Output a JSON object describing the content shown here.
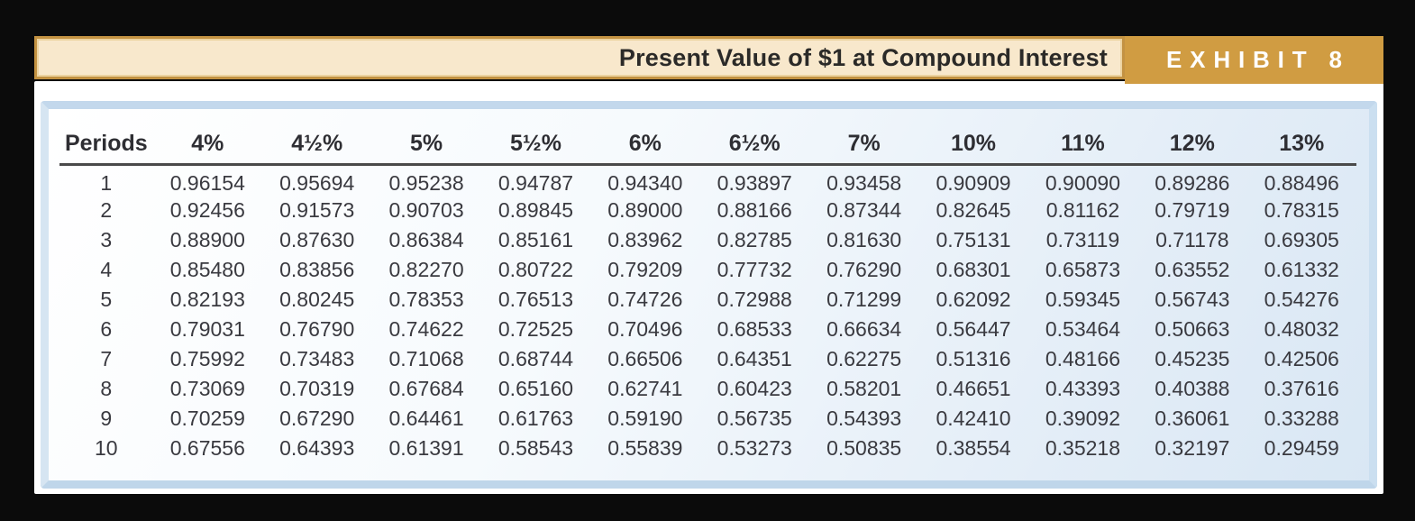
{
  "header": {
    "title": "Present Value of $1 at Compound Interest",
    "exhibit_label": "EXHIBIT 8"
  },
  "colors": {
    "page_bg": "#0b0b0b",
    "header_bar_bg": "#f8e8cc",
    "header_bar_border": "#c39242",
    "exhibit_tab_bg": "#d09c42",
    "exhibit_text": "#ffffff",
    "title_text": "#2b2a28",
    "sheet_bg": "#ffffff",
    "panel_frame": "#c6daed",
    "panel_bg_start": "#ffffff",
    "panel_bg_end": "#d9e7f4",
    "table_text": "#3a3a40",
    "header_rule": "#4a4a4a"
  },
  "table": {
    "columns": [
      "Periods",
      "4%",
      "4½%",
      "5%",
      "5½%",
      "6%",
      "6½%",
      "7%",
      "10%",
      "11%",
      "12%",
      "13%"
    ],
    "rows": [
      [
        "1",
        "0.96154",
        "0.95694",
        "0.95238",
        "0.94787",
        "0.94340",
        "0.93897",
        "0.93458",
        "0.90909",
        "0.90090",
        "0.89286",
        "0.88496"
      ],
      [
        "2",
        "0.92456",
        "0.91573",
        "0.90703",
        "0.89845",
        "0.89000",
        "0.88166",
        "0.87344",
        "0.82645",
        "0.81162",
        "0.79719",
        "0.78315"
      ],
      [
        "3",
        "0.88900",
        "0.87630",
        "0.86384",
        "0.85161",
        "0.83962",
        "0.82785",
        "0.81630",
        "0.75131",
        "0.73119",
        "0.71178",
        "0.69305"
      ],
      [
        "4",
        "0.85480",
        "0.83856",
        "0.82270",
        "0.80722",
        "0.79209",
        "0.77732",
        "0.76290",
        "0.68301",
        "0.65873",
        "0.63552",
        "0.61332"
      ],
      [
        "5",
        "0.82193",
        "0.80245",
        "0.78353",
        "0.76513",
        "0.74726",
        "0.72988",
        "0.71299",
        "0.62092",
        "0.59345",
        "0.56743",
        "0.54276"
      ],
      [
        "6",
        "0.79031",
        "0.76790",
        "0.74622",
        "0.72525",
        "0.70496",
        "0.68533",
        "0.66634",
        "0.56447",
        "0.53464",
        "0.50663",
        "0.48032"
      ],
      [
        "7",
        "0.75992",
        "0.73483",
        "0.71068",
        "0.68744",
        "0.66506",
        "0.64351",
        "0.62275",
        "0.51316",
        "0.48166",
        "0.45235",
        "0.42506"
      ],
      [
        "8",
        "0.73069",
        "0.70319",
        "0.67684",
        "0.65160",
        "0.62741",
        "0.60423",
        "0.58201",
        "0.46651",
        "0.43393",
        "0.40388",
        "0.37616"
      ],
      [
        "9",
        "0.70259",
        "0.67290",
        "0.64461",
        "0.61763",
        "0.59190",
        "0.56735",
        "0.54393",
        "0.42410",
        "0.39092",
        "0.36061",
        "0.33288"
      ],
      [
        "10",
        "0.67556",
        "0.64393",
        "0.61391",
        "0.58543",
        "0.55839",
        "0.53273",
        "0.50835",
        "0.38554",
        "0.35218",
        "0.32197",
        "0.29459"
      ]
    ]
  }
}
